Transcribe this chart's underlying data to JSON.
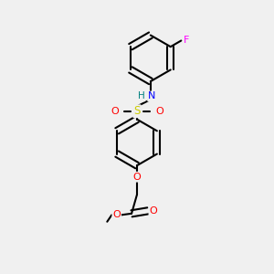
{
  "background_color": "#f0f0f0",
  "bond_color": "#000000",
  "atom_colors": {
    "F": "#ff00ff",
    "N": "#0000ff",
    "H": "#008080",
    "S": "#cccc00",
    "O": "#ff0000",
    "C": "#000000"
  },
  "figsize": [
    3.0,
    3.0
  ],
  "dpi": 100
}
